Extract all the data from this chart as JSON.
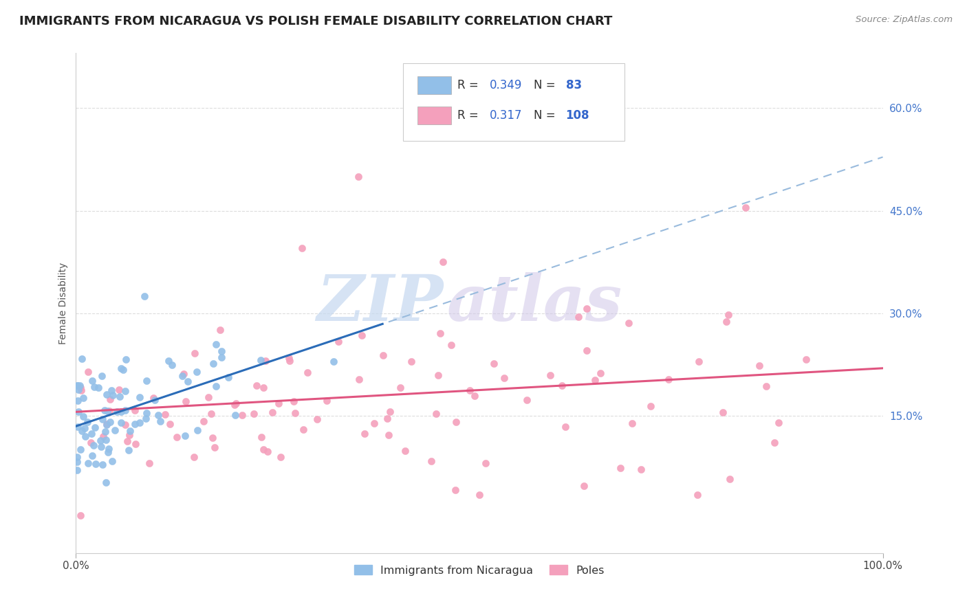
{
  "title": "IMMIGRANTS FROM NICARAGUA VS POLISH FEMALE DISABILITY CORRELATION CHART",
  "source": "Source: ZipAtlas.com",
  "ylabel": "Female Disability",
  "xlim": [
    0,
    1
  ],
  "ylim": [
    -0.05,
    0.68
  ],
  "yticks": [
    0.15,
    0.3,
    0.45,
    0.6
  ],
  "ytick_labels": [
    "15.0%",
    "30.0%",
    "45.0%",
    "60.0%"
  ],
  "legend_labels": [
    "Immigrants from Nicaragua",
    "Poles"
  ],
  "blue_color": "#92bfe8",
  "pink_color": "#f4a0bc",
  "blue_line_color": "#2b6cb8",
  "pink_line_color": "#e05580",
  "gray_line_color": "#99bbdd",
  "R_blue": 0.349,
  "N_blue": 83,
  "R_pink": 0.317,
  "N_pink": 108,
  "watermark_zip": "ZIP",
  "watermark_atlas": "atlas",
  "title_fontsize": 13,
  "axis_label_fontsize": 10,
  "tick_fontsize": 11,
  "legend_fontsize": 12
}
